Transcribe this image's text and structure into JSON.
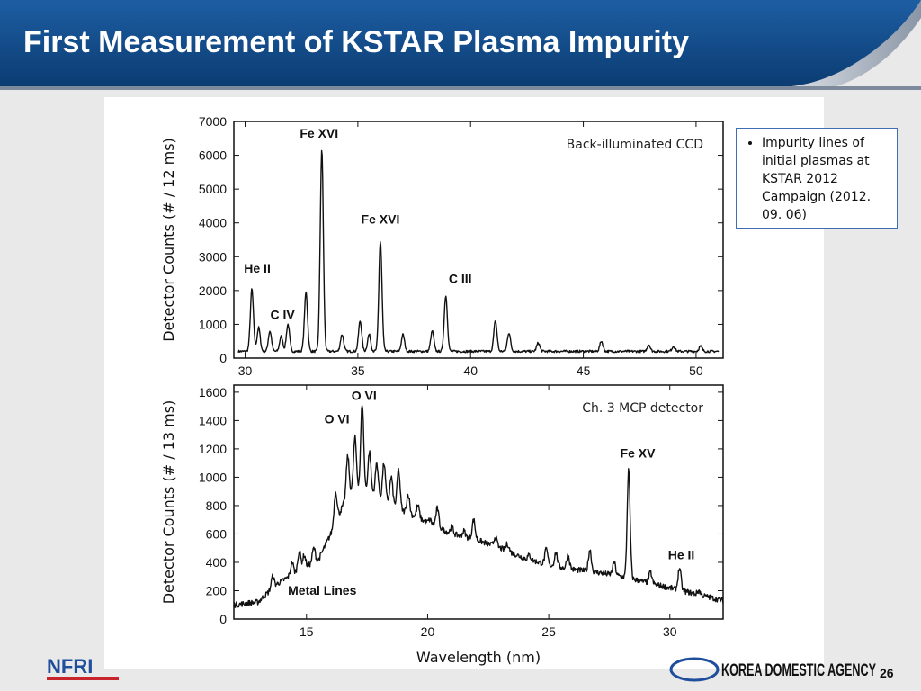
{
  "slide": {
    "title": "First Measurement of KSTAR Plasma Impurity",
    "page_number": "26",
    "bullets": [
      "Impurity lines of initial plasmas at KSTAR 2012 Campaign (2012. 09. 06)"
    ],
    "logos": {
      "left": "NFRI",
      "right": "KOREA DOMESTIC AGENCY"
    },
    "colors": {
      "header": "#114a86",
      "accent": "#3f6fb3",
      "line": "#111111"
    }
  },
  "chart_data": [
    {
      "type": "line",
      "ylabel": "Detector Counts (# / 12 ms)",
      "xlabel": "",
      "xlim": [
        29.5,
        51.2
      ],
      "ylim": [
        0,
        7000
      ],
      "xticks": [
        30,
        35,
        40,
        45,
        50
      ],
      "yticks": [
        0,
        1000,
        2000,
        3000,
        4000,
        5000,
        6000,
        7000
      ],
      "legend_text": "Back-illuminated CCD",
      "baseline": 200,
      "x_range": [
        29.7,
        51.0
      ],
      "peaks": [
        {
          "x": 30.3,
          "y": 2050
        },
        {
          "x": 30.6,
          "y": 900
        },
        {
          "x": 31.1,
          "y": 800
        },
        {
          "x": 31.6,
          "y": 650
        },
        {
          "x": 31.9,
          "y": 1000
        },
        {
          "x": 32.7,
          "y": 1950
        },
        {
          "x": 33.4,
          "y": 6150
        },
        {
          "x": 34.3,
          "y": 700
        },
        {
          "x": 35.1,
          "y": 1100
        },
        {
          "x": 35.5,
          "y": 700
        },
        {
          "x": 36.0,
          "y": 3450
        },
        {
          "x": 37.0,
          "y": 700
        },
        {
          "x": 38.3,
          "y": 800
        },
        {
          "x": 38.9,
          "y": 1850
        },
        {
          "x": 41.1,
          "y": 1100
        },
        {
          "x": 41.7,
          "y": 750
        },
        {
          "x": 43.0,
          "y": 450
        },
        {
          "x": 45.8,
          "y": 500
        },
        {
          "x": 47.9,
          "y": 400
        },
        {
          "x": 49.0,
          "y": 350
        },
        {
          "x": 50.2,
          "y": 350
        }
      ],
      "annotations": [
        {
          "text": "Fe XVI",
          "x": 33.4,
          "y": 6150
        },
        {
          "text": "Fe XVI",
          "x": 36.0,
          "y": 3450
        },
        {
          "text": "He II",
          "x": 30.3,
          "y": 2050
        },
        {
          "text": "C IV",
          "x": 31.9,
          "y": 1000
        },
        {
          "text": "C III",
          "x": 38.9,
          "y": 1850
        }
      ]
    },
    {
      "type": "line",
      "ylabel": "Detector Counts (# / 13 ms)",
      "xlabel": "Wavelength (nm)",
      "xlim": [
        12.0,
        32.2
      ],
      "ylim": [
        0,
        1650
      ],
      "xticks": [
        15,
        20,
        25,
        30
      ],
      "yticks": [
        0,
        200,
        400,
        600,
        800,
        1000,
        1200,
        1400,
        1600
      ],
      "legend_text": "Ch. 3 MCP detector",
      "x_range": [
        12.0,
        32.2
      ],
      "envelope": [
        [
          12.0,
          100
        ],
        [
          13.0,
          120
        ],
        [
          13.8,
          250
        ],
        [
          14.8,
          350
        ],
        [
          15.5,
          420
        ],
        [
          16.0,
          600
        ],
        [
          16.5,
          800
        ],
        [
          17.0,
          930
        ],
        [
          17.5,
          900
        ],
        [
          18.0,
          860
        ],
        [
          19.0,
          760
        ],
        [
          20.0,
          680
        ],
        [
          21.0,
          600
        ],
        [
          22.0,
          560
        ],
        [
          23.0,
          500
        ],
        [
          24.0,
          430
        ],
        [
          25.0,
          380
        ],
        [
          26.0,
          350
        ],
        [
          27.0,
          330
        ],
        [
          28.0,
          300
        ],
        [
          29.0,
          260
        ],
        [
          30.0,
          220
        ],
        [
          31.0,
          180
        ],
        [
          32.2,
          130
        ]
      ],
      "peaks": [
        {
          "x": 13.6,
          "y": 300
        },
        {
          "x": 14.4,
          "y": 400
        },
        {
          "x": 14.7,
          "y": 480
        },
        {
          "x": 14.9,
          "y": 450
        },
        {
          "x": 15.3,
          "y": 500
        },
        {
          "x": 16.2,
          "y": 900
        },
        {
          "x": 16.7,
          "y": 1150
        },
        {
          "x": 17.0,
          "y": 1280
        },
        {
          "x": 17.3,
          "y": 1520
        },
        {
          "x": 17.6,
          "y": 1180
        },
        {
          "x": 17.9,
          "y": 1100
        },
        {
          "x": 18.2,
          "y": 1100
        },
        {
          "x": 18.5,
          "y": 1000
        },
        {
          "x": 18.8,
          "y": 1050
        },
        {
          "x": 19.2,
          "y": 880
        },
        {
          "x": 19.6,
          "y": 800
        },
        {
          "x": 20.1,
          "y": 700
        },
        {
          "x": 20.4,
          "y": 780
        },
        {
          "x": 21.0,
          "y": 650
        },
        {
          "x": 21.5,
          "y": 620
        },
        {
          "x": 21.9,
          "y": 700
        },
        {
          "x": 22.8,
          "y": 580
        },
        {
          "x": 23.3,
          "y": 530
        },
        {
          "x": 24.2,
          "y": 450
        },
        {
          "x": 24.9,
          "y": 490
        },
        {
          "x": 25.3,
          "y": 470
        },
        {
          "x": 25.8,
          "y": 450
        },
        {
          "x": 26.7,
          "y": 490
        },
        {
          "x": 27.7,
          "y": 400
        },
        {
          "x": 28.3,
          "y": 1050
        },
        {
          "x": 29.2,
          "y": 330
        },
        {
          "x": 30.4,
          "y": 360
        },
        {
          "x": 31.2,
          "y": 200
        }
      ],
      "annotations": [
        {
          "text": "O VI",
          "x": 17.3,
          "y": 1520
        },
        {
          "text": "O VI",
          "x": 16.7,
          "y": 1280
        },
        {
          "text": "Fe XV",
          "x": 28.3,
          "y": 1050
        },
        {
          "text": "He II",
          "x": 30.4,
          "y": 360
        },
        {
          "text": "Metal Lines",
          "x": 15.5,
          "y": 170
        }
      ]
    }
  ]
}
